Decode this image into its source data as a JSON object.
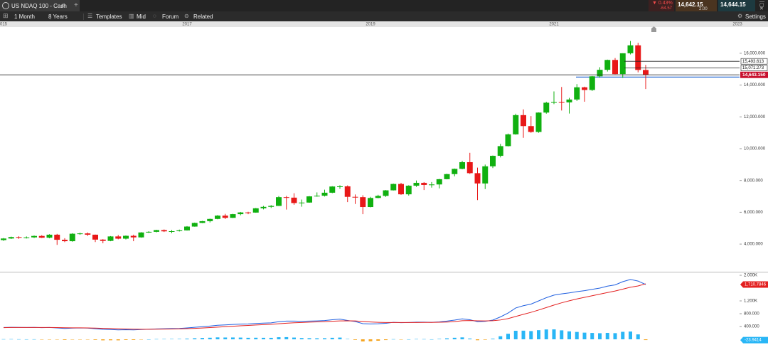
{
  "header": {
    "title": "US NDAQ 100 - Cash",
    "add": "+",
    "change": "▼ 0.43%",
    "change_points": "-64.57",
    "sell": "14,642.15",
    "spread": "2.00",
    "buy": "14,644.15"
  },
  "toolbar": {
    "interval": "1 Month",
    "range": "8 Years",
    "buttons": [
      "Templates",
      "Mid",
      "Forum",
      "Related"
    ],
    "settings": "Settings"
  },
  "chart_data": [
    {
      "type": "candlestick",
      "up_color": "#10b010",
      "down_color": "#e81818",
      "grid": false,
      "categories": [
        "015",
        null,
        null,
        null,
        null,
        null,
        null,
        null,
        null,
        null,
        null,
        null,
        null,
        null,
        null,
        null,
        null,
        null,
        null,
        null,
        null,
        null,
        null,
        null,
        "2017",
        null,
        null,
        null,
        null,
        null,
        null,
        null,
        null,
        null,
        null,
        null,
        null,
        null,
        null,
        null,
        null,
        null,
        null,
        null,
        null,
        null,
        null,
        null,
        "2019",
        null,
        null,
        null,
        null,
        null,
        null,
        null,
        null,
        null,
        null,
        null,
        null,
        null,
        null,
        null,
        null,
        null,
        null,
        null,
        null,
        null,
        null,
        null,
        "2021",
        null,
        null,
        null,
        null,
        null,
        null,
        null,
        null,
        null,
        null,
        null,
        null,
        null,
        null,
        null,
        null,
        null,
        null,
        null,
        null,
        null,
        null,
        null,
        "2023"
      ],
      "ohlc": [
        [
          4250,
          4380,
          4200,
          4350
        ],
        [
          4350,
          4470,
          4320,
          4440
        ],
        [
          4440,
          4490,
          4330,
          4400
        ],
        [
          4400,
          4480,
          4350,
          4420
        ],
        [
          4420,
          4540,
          4380,
          4510
        ],
        [
          4510,
          4560,
          4380,
          4400
        ],
        [
          4400,
          4620,
          4360,
          4590
        ],
        [
          4590,
          4640,
          3950,
          4270
        ],
        [
          4270,
          4370,
          4120,
          4180
        ],
        [
          4180,
          4680,
          4150,
          4650
        ],
        [
          4650,
          4720,
          4580,
          4670
        ],
        [
          4670,
          4730,
          4510,
          4590
        ],
        [
          4590,
          4600,
          4130,
          4280
        ],
        [
          4280,
          4310,
          4050,
          4200
        ],
        [
          4200,
          4500,
          4180,
          4480
        ],
        [
          4480,
          4570,
          4300,
          4340
        ],
        [
          4340,
          4540,
          4290,
          4520
        ],
        [
          4520,
          4590,
          4180,
          4420
        ],
        [
          4420,
          4750,
          4400,
          4730
        ],
        [
          4730,
          4810,
          4700,
          4770
        ],
        [
          4770,
          4900,
          4740,
          4880
        ],
        [
          4880,
          4920,
          4760,
          4800
        ],
        [
          4800,
          4880,
          4680,
          4810
        ],
        [
          4810,
          4910,
          4790,
          4860
        ],
        [
          4860,
          5130,
          4850,
          5100
        ],
        [
          5100,
          5350,
          5090,
          5330
        ],
        [
          5330,
          5460,
          5320,
          5440
        ],
        [
          5440,
          5600,
          5360,
          5580
        ],
        [
          5580,
          5820,
          5560,
          5790
        ],
        [
          5790,
          5900,
          5570,
          5650
        ],
        [
          5650,
          5900,
          5640,
          5880
        ],
        [
          5880,
          6020,
          5810,
          5990
        ],
        [
          5990,
          6030,
          5880,
          5980
        ],
        [
          5980,
          6270,
          5970,
          6250
        ],
        [
          6250,
          6400,
          6180,
          6340
        ],
        [
          6340,
          6450,
          6270,
          6400
        ],
        [
          6400,
          7020,
          6390,
          6950
        ],
        [
          6950,
          7030,
          6170,
          6920
        ],
        [
          6920,
          7200,
          6470,
          6580
        ],
        [
          6580,
          6800,
          6350,
          6610
        ],
        [
          6610,
          7020,
          6600,
          7000
        ],
        [
          7000,
          7250,
          6980,
          7040
        ],
        [
          7040,
          7420,
          6990,
          7230
        ],
        [
          7230,
          7640,
          7200,
          7620
        ],
        [
          7620,
          7700,
          7470,
          7630
        ],
        [
          7630,
          7690,
          6640,
          6970
        ],
        [
          6970,
          7120,
          6520,
          6950
        ],
        [
          6950,
          7070,
          5880,
          6330
        ],
        [
          6330,
          6970,
          6310,
          6900
        ],
        [
          6900,
          7100,
          6880,
          7030
        ],
        [
          7030,
          7400,
          6970,
          7380
        ],
        [
          7380,
          7800,
          7370,
          7780
        ],
        [
          7780,
          7850,
          7100,
          7130
        ],
        [
          7130,
          7700,
          7050,
          7670
        ],
        [
          7670,
          8000,
          7600,
          7850
        ],
        [
          7850,
          7900,
          7400,
          7720
        ],
        [
          7720,
          7900,
          7550,
          7750
        ],
        [
          7750,
          8100,
          7500,
          8080
        ],
        [
          8080,
          8420,
          8070,
          8400
        ],
        [
          8400,
          8750,
          8260,
          8730
        ],
        [
          8730,
          9240,
          8700,
          9150
        ],
        [
          9150,
          9740,
          8410,
          8460
        ],
        [
          8460,
          8810,
          6770,
          7810
        ],
        [
          7810,
          9000,
          7460,
          8890
        ],
        [
          8890,
          9570,
          8780,
          9550
        ],
        [
          9550,
          10300,
          9450,
          10160
        ],
        [
          10160,
          10950,
          10140,
          10900
        ],
        [
          10900,
          12200,
          10880,
          12110
        ],
        [
          12110,
          12470,
          10680,
          11420
        ],
        [
          11420,
          12050,
          11000,
          11050
        ],
        [
          11050,
          12280,
          11000,
          12270
        ],
        [
          12270,
          12950,
          12200,
          12890
        ],
        [
          12890,
          13600,
          12800,
          12930
        ],
        [
          12930,
          13880,
          12400,
          12910
        ],
        [
          12910,
          13200,
          12210,
          13090
        ],
        [
          13090,
          14060,
          13000,
          13860
        ],
        [
          13860,
          13900,
          12950,
          13690
        ],
        [
          13690,
          14570,
          13630,
          14550
        ],
        [
          14550,
          15120,
          14460,
          14960
        ],
        [
          14960,
          15600,
          14850,
          15580
        ],
        [
          15580,
          15700,
          14680,
          14690
        ],
        [
          14690,
          16000,
          14450,
          16000
        ],
        [
          16000,
          16770,
          15930,
          16500
        ],
        [
          16500,
          16660,
          14800,
          14950
        ],
        [
          14950,
          15270,
          13750,
          14643.15
        ],
        null,
        null,
        null,
        null,
        null,
        null,
        null,
        null,
        null,
        null,
        null,
        null
      ],
      "ylim": [
        2260,
        17650
      ],
      "yticks": [
        {
          "value": 4000,
          "label": "4,000.000"
        },
        {
          "value": 6000,
          "label": "6,000.000"
        },
        {
          "value": 8000,
          "label": "8,000.000"
        },
        {
          "value": 10000,
          "label": "10,000.000"
        },
        {
          "value": 12000,
          "label": "12,000.000"
        },
        {
          "value": 14000,
          "label": "14,000.000"
        },
        {
          "value": 16000,
          "label": "16,000.000"
        }
      ],
      "levels": [
        {
          "value": 15493.613,
          "label": "15,493.613"
        },
        {
          "value": 15071.273,
          "label": "15,071.273"
        }
      ],
      "current": {
        "value": 14643.15,
        "label": "14,643.150",
        "color": "#c8102e"
      },
      "drawn_line": {
        "value": 14500,
        "color": "#2f6fd6"
      }
    },
    {
      "type": "line",
      "ylim": [
        -178,
        2089
      ],
      "yticks": [
        {
          "value": 400,
          "label": "400.000"
        },
        {
          "value": 800,
          "label": "800.000"
        },
        {
          "value": 1200,
          "label": "1,200K"
        },
        {
          "value": 2000,
          "label": "2.000K"
        }
      ],
      "series": [
        {
          "color": "#1f5fe0",
          "values": [
            370,
            375,
            372,
            370,
            372,
            365,
            368,
            355,
            340,
            350,
            355,
            350,
            330,
            310,
            305,
            295,
            300,
            295,
            305,
            315,
            325,
            330,
            335,
            340,
            355,
            375,
            395,
            415,
            440,
            450,
            465,
            475,
            480,
            495,
            505,
            515,
            550,
            570,
            570,
            565,
            570,
            575,
            585,
            610,
            630,
            590,
            555,
            490,
            480,
            485,
            500,
            530,
            520,
            525,
            535,
            535,
            530,
            545,
            570,
            600,
            640,
            610,
            550,
            560,
            600,
            700,
            820,
            980,
            1050,
            1100,
            1200,
            1300,
            1380,
            1420,
            1450,
            1490,
            1520,
            1560,
            1600,
            1660,
            1700,
            1800,
            1870,
            1820,
            1710.7846,
            null,
            null,
            null,
            null,
            null,
            null,
            null,
            null,
            null,
            null,
            null,
            null
          ]
        },
        {
          "color": "#e32020",
          "values": [
            365,
            368,
            369,
            369,
            370,
            369,
            369,
            366,
            361,
            358,
            357,
            355,
            350,
            342,
            335,
            327,
            322,
            317,
            315,
            315,
            317,
            320,
            323,
            327,
            333,
            342,
            353,
            366,
            380,
            394,
            408,
            421,
            433,
            446,
            458,
            469,
            485,
            502,
            516,
            526,
            535,
            543,
            551,
            563,
            576,
            579,
            574,
            557,
            541,
            530,
            524,
            525,
            524,
            524,
            526,
            528,
            529,
            532,
            540,
            552,
            580,
            586,
            579,
            575,
            580,
            604,
            647,
            713,
            780,
            843,
            915,
            992,
            1070,
            1140,
            1202,
            1260,
            1312,
            1362,
            1410,
            1460,
            1508,
            1566,
            1627,
            1666,
            1734.726,
            null,
            null,
            null,
            null,
            null,
            null,
            null,
            null,
            null,
            null,
            null,
            null
          ]
        },
        {
          "type": "bar",
          "color": "#29b6f6",
          "negative_color": "#f5a623",
          "values": [
            5,
            7,
            3,
            1,
            2,
            -4,
            -1,
            -11,
            -21,
            -8,
            -2,
            -5,
            -20,
            -32,
            -30,
            -32,
            -22,
            -22,
            -10,
            0,
            8,
            10,
            12,
            13,
            22,
            33,
            42,
            49,
            60,
            56,
            57,
            54,
            47,
            49,
            47,
            46,
            65,
            68,
            54,
            39,
            35,
            32,
            34,
            47,
            54,
            11,
            -19,
            -67,
            -61,
            -45,
            -24,
            5,
            -4,
            1,
            9,
            7,
            1,
            13,
            30,
            48,
            60,
            24,
            -29,
            -15,
            20,
            96,
            173,
            267,
            270,
            257,
            285,
            308,
            310,
            280,
            248,
            230,
            208,
            198,
            190,
            200,
            192,
            234,
            243,
            154,
            -23.9414,
            null,
            null,
            null,
            null,
            null,
            null,
            null,
            null,
            null,
            null,
            null,
            null
          ]
        }
      ],
      "last_labels": [
        {
          "value": 1710.7846,
          "label": "1,710.7846",
          "color": "#e32020"
        },
        {
          "value": -23.9414,
          "label": "-23.9414",
          "color": "#29b6f6"
        }
      ]
    }
  ]
}
